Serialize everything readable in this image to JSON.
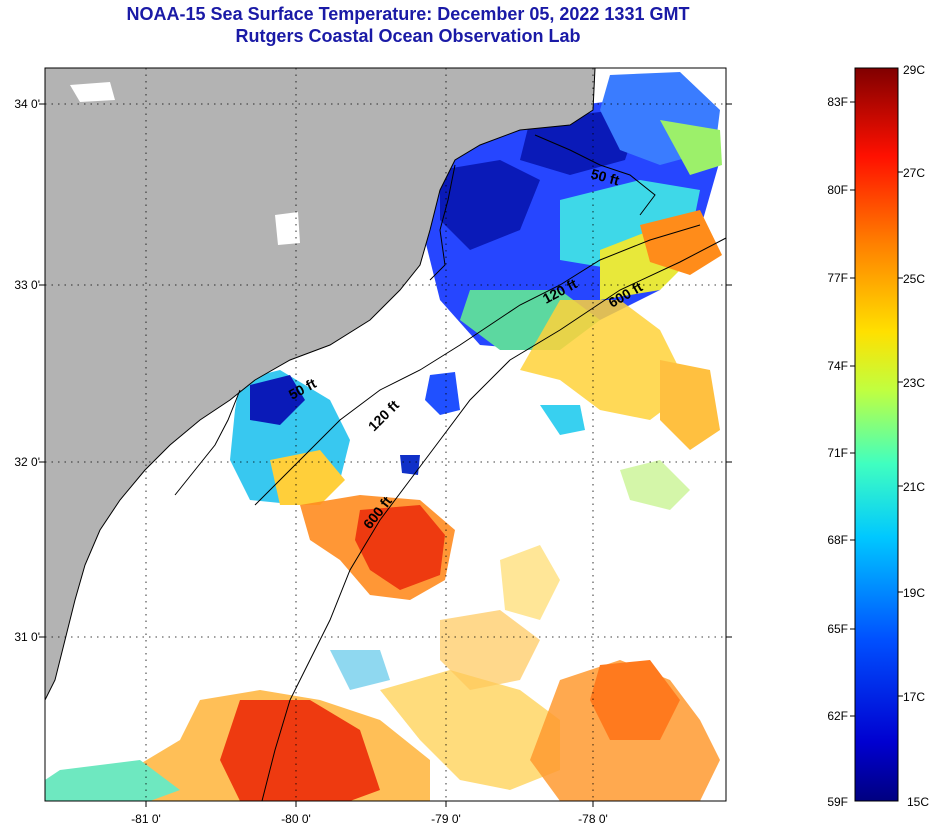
{
  "title": "NOAA-15 Sea Surface Temperature:  December 05, 2022 1331 GMT",
  "subtitle": "Rutgers Coastal Ocean Observation Lab",
  "map": {
    "lon_ticks": [
      "-81 0'",
      "-80 0'",
      "-79 0'",
      "-78 0'"
    ],
    "lat_ticks": [
      "34 0'",
      "33 0'",
      "32 0'",
      "31 0'"
    ],
    "isobath_labels": [
      "50 ft",
      "120 ft",
      "600 ft",
      "50 ft",
      "120 ft",
      "600 ft"
    ],
    "colors": {
      "land": "#b3b3b3",
      "cloud": "#ffffff",
      "grid": "#000000"
    }
  },
  "colorbar": {
    "fahrenheit": [
      "83F",
      "80F",
      "77F",
      "74F",
      "71F",
      "68F",
      "65F",
      "62F",
      "59F"
    ],
    "celsius": [
      "29C",
      "27C",
      "25C",
      "23C",
      "21C",
      "19C",
      "17C",
      "15C"
    ],
    "range_c": [
      15,
      29
    ],
    "colormap": "jet"
  }
}
